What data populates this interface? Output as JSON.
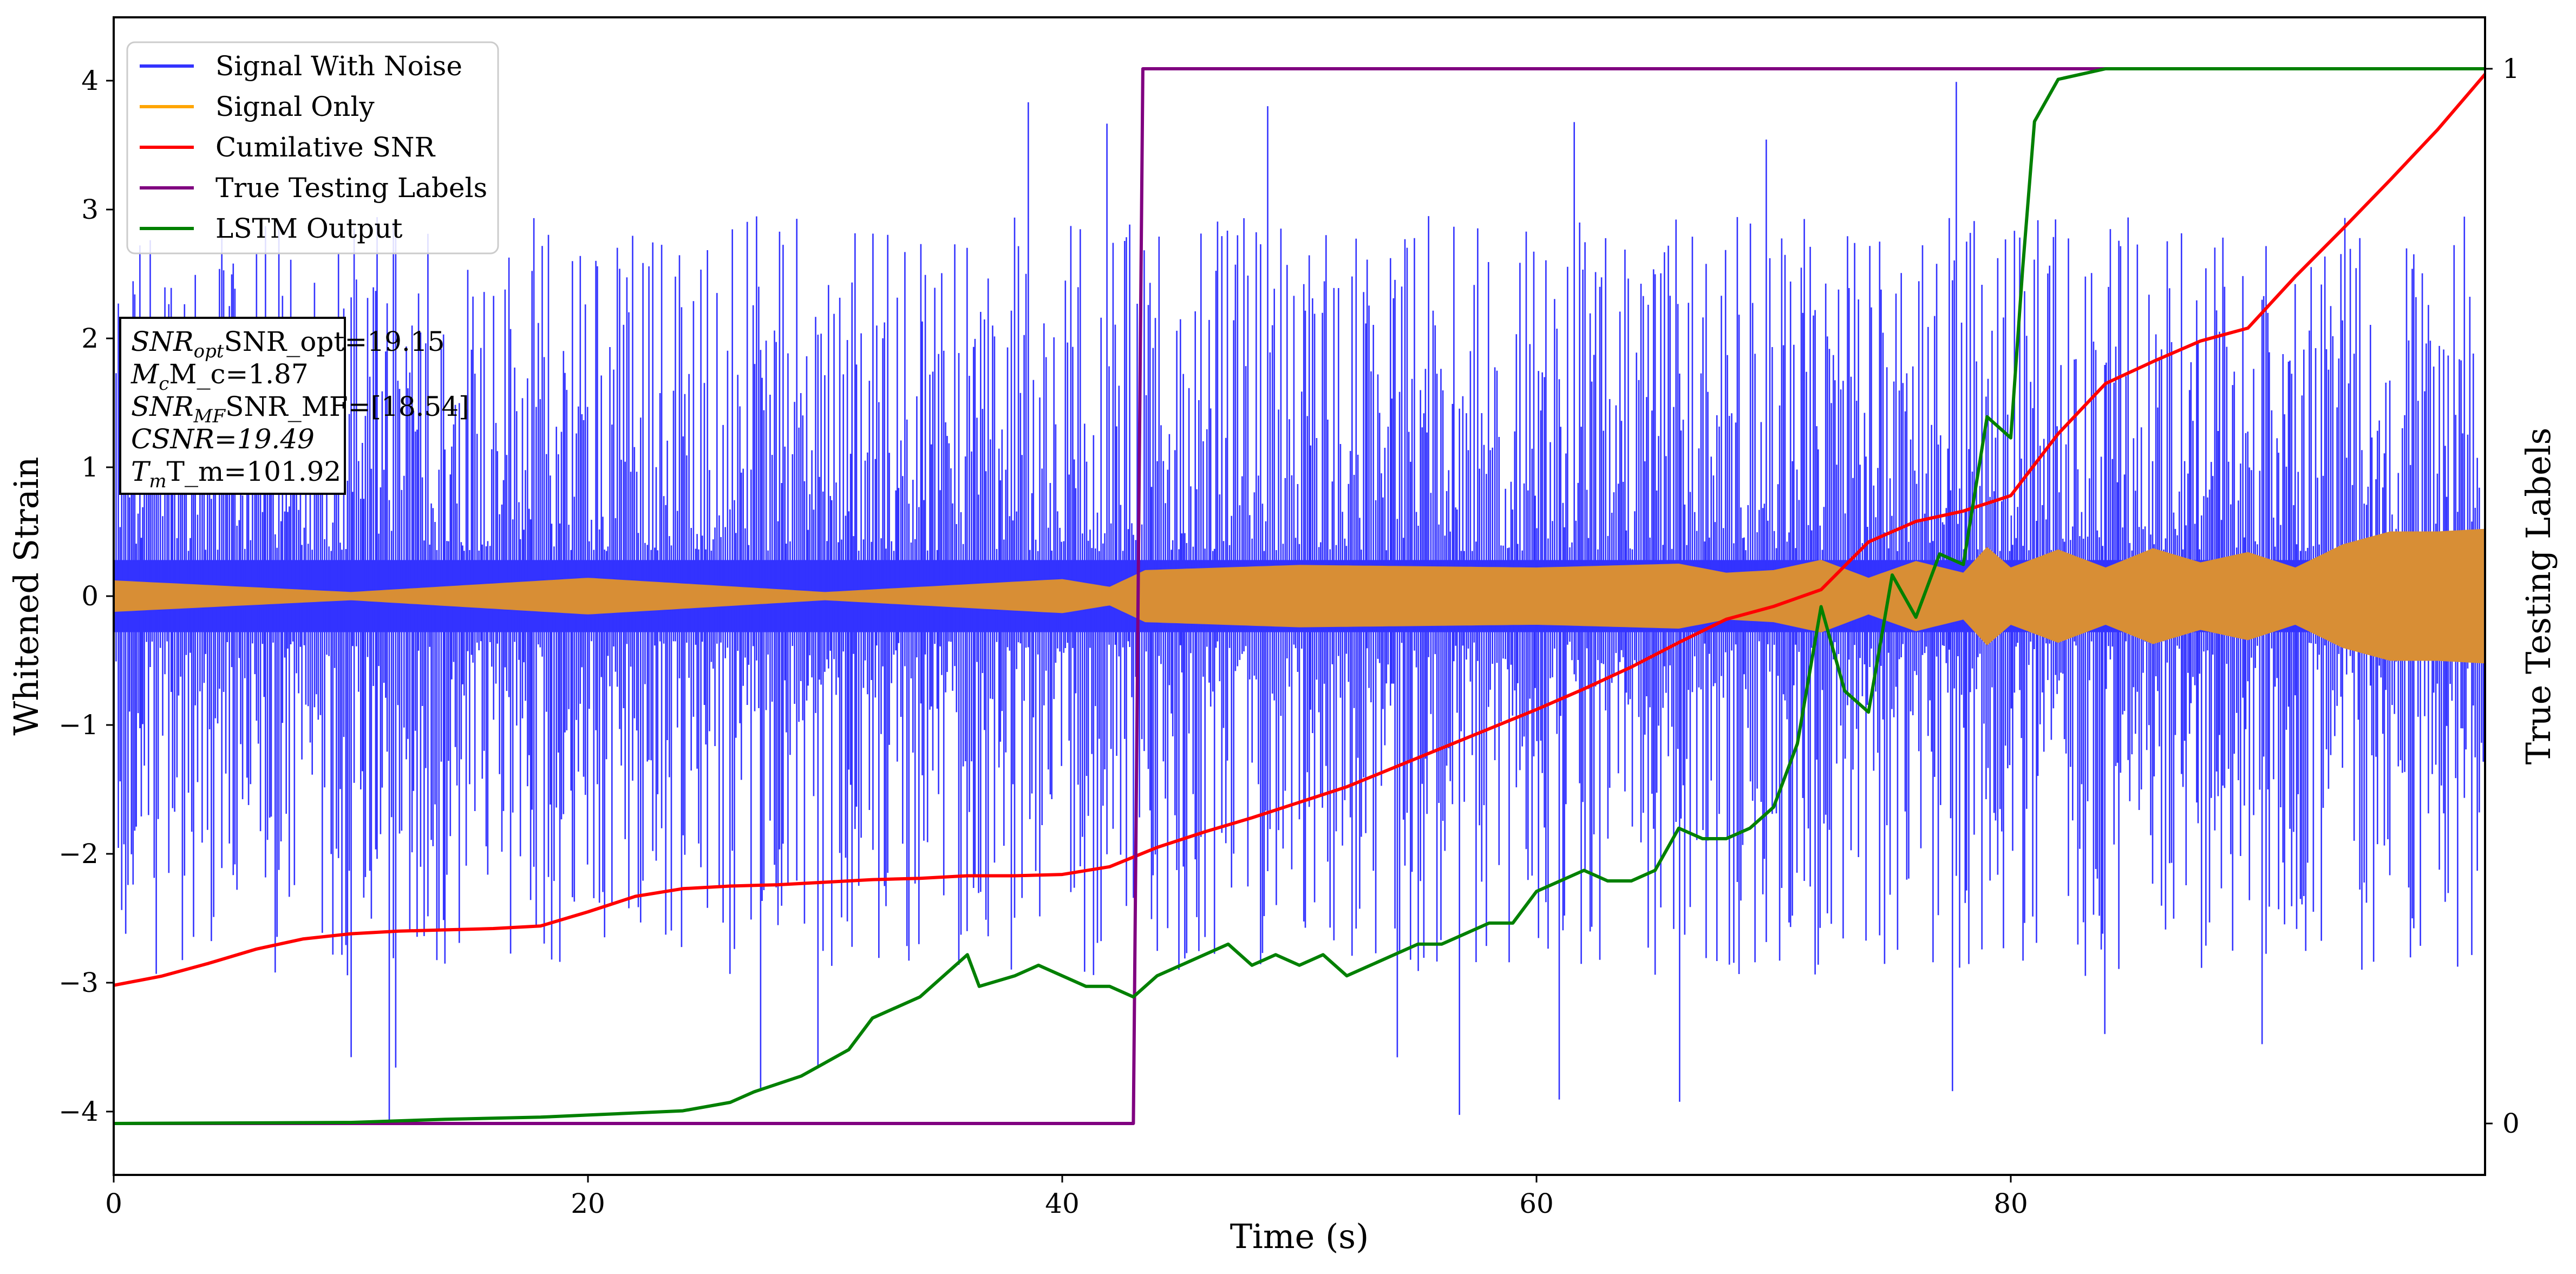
{
  "chart_data": {
    "type": "line",
    "xlabel": "Time (s)",
    "ylabel": "Whitened Strain",
    "y2label": "True Testing Labels",
    "xlim": [
      0,
      100
    ],
    "ylim": [
      -4.5,
      4.5
    ],
    "y2lim": [
      -0.05,
      1.05
    ],
    "xticks": [
      {
        "value": 0,
        "label": "0"
      },
      {
        "value": 20,
        "label": "20"
      },
      {
        "value": 40,
        "label": "40"
      },
      {
        "value": 60,
        "label": "60"
      },
      {
        "value": 80,
        "label": "80"
      }
    ],
    "yticks": [
      {
        "value": -4,
        "label": "−4"
      },
      {
        "value": -3,
        "label": "−3"
      },
      {
        "value": -2,
        "label": "−2"
      },
      {
        "value": -1,
        "label": "−1"
      },
      {
        "value": 0,
        "label": "0"
      },
      {
        "value": 1,
        "label": "1"
      },
      {
        "value": 2,
        "label": "2"
      },
      {
        "value": 3,
        "label": "3"
      },
      {
        "value": 4,
        "label": "4"
      }
    ],
    "y2ticks": [
      {
        "value": 0,
        "label": "0"
      },
      {
        "value": 1,
        "label": "1"
      }
    ],
    "grid": false,
    "legend_position": "top-left",
    "annotation": {
      "position": "left",
      "lines": [
        "SNR_opt=19.15",
        "M_c=1.87",
        "SNR_MF=[18.54]",
        "CSNR=19.49",
        "T_m=101.92"
      ]
    },
    "series": [
      {
        "name": "Signal With Noise",
        "color": "#3333ff",
        "axis": "left",
        "kind": "noise-band",
        "core_low": -0.28,
        "core_high": 0.28,
        "spike_max": 4.0,
        "spike_min": -4.1,
        "note_values": "dense oscillating noise, mostly within about ±1.5"
      },
      {
        "name": "Signal Only",
        "color": "#ffa500",
        "fill_color": "#d88e35",
        "axis": "left",
        "kind": "envelope",
        "x": [
          0,
          10,
          20,
          30,
          40,
          42,
          43.5,
          50,
          60,
          66,
          68,
          70,
          72,
          74,
          76,
          78,
          79,
          80,
          82,
          84,
          86,
          88,
          90,
          92,
          94,
          96,
          98,
          100
        ],
        "envelope": [
          0.12,
          0.03,
          0.14,
          0.03,
          0.13,
          0.07,
          0.2,
          0.24,
          0.22,
          0.25,
          0.18,
          0.2,
          0.28,
          0.14,
          0.27,
          0.18,
          0.38,
          0.22,
          0.36,
          0.22,
          0.37,
          0.26,
          0.34,
          0.22,
          0.4,
          0.5,
          0.5,
          0.52
        ]
      },
      {
        "name": "Cumilative SNR",
        "color": "#ff0000",
        "axis": "left",
        "x": [
          0,
          2,
          4,
          6,
          8,
          10,
          12,
          14,
          16,
          18,
          20,
          22,
          24,
          26,
          28,
          30,
          32,
          34,
          36,
          38,
          40,
          42,
          44,
          46,
          48,
          50,
          52,
          54,
          56,
          58,
          60,
          62,
          64,
          66,
          68,
          70,
          72,
          74,
          76,
          78,
          80,
          82,
          84,
          86,
          88,
          90,
          92,
          94,
          96,
          98,
          100
        ],
        "values": [
          -3.02,
          -2.95,
          -2.85,
          -2.74,
          -2.66,
          -2.62,
          -2.6,
          -2.59,
          -2.58,
          -2.56,
          -2.45,
          -2.33,
          -2.27,
          -2.25,
          -2.24,
          -2.22,
          -2.2,
          -2.19,
          -2.17,
          -2.17,
          -2.16,
          -2.1,
          -1.95,
          -1.83,
          -1.72,
          -1.6,
          -1.48,
          -1.33,
          -1.18,
          -1.03,
          -0.88,
          -0.72,
          -0.55,
          -0.36,
          -0.18,
          -0.08,
          0.05,
          0.42,
          0.58,
          0.66,
          0.78,
          1.26,
          1.65,
          1.82,
          1.98,
          2.08,
          2.48,
          2.85,
          3.23,
          3.62,
          4.05
        ]
      },
      {
        "name": "True Testing Labels",
        "color": "#800080",
        "axis": "right",
        "x": [
          0,
          43,
          43.4,
          100
        ],
        "values": [
          0,
          0,
          1,
          1
        ]
      },
      {
        "name": "LSTM Output",
        "color": "#008000",
        "axis": "right",
        "x": [
          0,
          10,
          14,
          18,
          20,
          24,
          26,
          27,
          29,
          31,
          32,
          33,
          34,
          35,
          36,
          36.5,
          38,
          39,
          40,
          41,
          42,
          43,
          44,
          45,
          46,
          47,
          48,
          49,
          50,
          51,
          52,
          53,
          54,
          55,
          56,
          57,
          58,
          59,
          60,
          61,
          62,
          63,
          64,
          65,
          66,
          67,
          68,
          69,
          70,
          71,
          72,
          73,
          74,
          75,
          76,
          77,
          78,
          79,
          80,
          80.5,
          81,
          82,
          84,
          86,
          88,
          90,
          100
        ],
        "values": [
          0.0,
          0.001,
          0.004,
          0.006,
          0.008,
          0.012,
          0.02,
          0.03,
          0.045,
          0.07,
          0.1,
          0.11,
          0.12,
          0.14,
          0.16,
          0.13,
          0.14,
          0.15,
          0.14,
          0.13,
          0.13,
          0.12,
          0.14,
          0.15,
          0.16,
          0.17,
          0.15,
          0.16,
          0.15,
          0.16,
          0.14,
          0.15,
          0.16,
          0.17,
          0.17,
          0.18,
          0.19,
          0.19,
          0.22,
          0.23,
          0.24,
          0.23,
          0.23,
          0.24,
          0.28,
          0.27,
          0.27,
          0.28,
          0.3,
          0.36,
          0.49,
          0.41,
          0.39,
          0.52,
          0.48,
          0.54,
          0.53,
          0.67,
          0.65,
          0.81,
          0.95,
          0.99,
          1.0,
          1.0,
          1.0,
          1.0,
          1.0
        ]
      }
    ]
  }
}
